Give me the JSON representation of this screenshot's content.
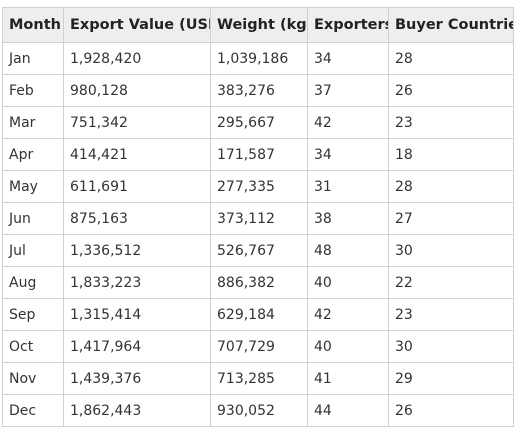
{
  "table": {
    "columns": [
      "Month",
      "Export Value (USD)",
      "Weight (kg)",
      "Exporters",
      "Buyer Countries"
    ],
    "rows": [
      [
        "Jan",
        "1,928,420",
        "1,039,186",
        "34",
        "28"
      ],
      [
        "Feb",
        "980,128",
        "383,276",
        "37",
        "26"
      ],
      [
        "Mar",
        "751,342",
        "295,667",
        "42",
        "23"
      ],
      [
        "Apr",
        "414,421",
        "171,587",
        "34",
        "18"
      ],
      [
        "May",
        "611,691",
        "277,335",
        "31",
        "28"
      ],
      [
        "Jun",
        "875,163",
        "373,112",
        "38",
        "27"
      ],
      [
        "Jul",
        "1,336,512",
        "526,767",
        "48",
        "30"
      ],
      [
        "Aug",
        "1,833,223",
        "886,382",
        "40",
        "22"
      ],
      [
        "Sep",
        "1,315,414",
        "629,184",
        "42",
        "23"
      ],
      [
        "Oct",
        "1,417,964",
        "707,729",
        "40",
        "30"
      ],
      [
        "Nov",
        "1,439,376",
        "713,285",
        "41",
        "29"
      ],
      [
        "Dec",
        "1,862,443",
        "930,052",
        "44",
        "26"
      ]
    ]
  },
  "colors": {
    "header_bg": "#eeeeee",
    "border": "#d0d0d0",
    "text": "#333333"
  }
}
